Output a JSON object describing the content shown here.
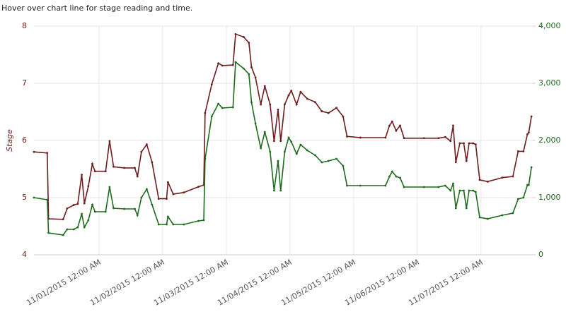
{
  "chart_data": {
    "type": "line",
    "title": "Hover over chart line for stage reading and time.",
    "y_label": "Stage",
    "x": [
      "2015-10-30T23:30",
      "2015-10-31T04:30",
      "2015-10-31T05:00",
      "2015-10-31T10:30",
      "2015-10-31T12:00",
      "2015-10-31T14:30",
      "2015-10-31T16:00",
      "2015-10-31T17:30",
      "2015-10-31T18:30",
      "2015-10-31T20:00",
      "2015-10-31T21:30",
      "2015-10-31T22:30",
      "2015-11-01T02:30",
      "2015-11-01T04:00",
      "2015-11-01T05:30",
      "2015-11-01T09:30",
      "2015-11-01T13:30",
      "2015-11-01T14:30",
      "2015-11-01T16:00",
      "2015-11-01T18:00",
      "2015-11-01T20:00",
      "2015-11-01T22:30",
      "2015-11-02T01:30",
      "2015-11-02T02:00",
      "2015-11-02T04:00",
      "2015-11-02T08:00",
      "2015-11-02T13:30",
      "2015-11-02T15:30",
      "2015-11-02T16:00",
      "2015-11-02T18:30",
      "2015-11-02T21:00",
      "2015-11-02T22:30",
      "2015-11-03T02:30",
      "2015-11-03T03:30",
      "2015-11-03T06:30",
      "2015-11-03T08:30",
      "2015-11-03T09:30",
      "2015-11-03T11:00",
      "2015-11-03T13:00",
      "2015-11-03T14:30",
      "2015-11-03T16:30",
      "2015-11-03T18:00",
      "2015-11-03T19:30",
      "2015-11-03T20:30",
      "2015-11-03T22:00",
      "2015-11-03T23:30",
      "2015-11-04T00:30",
      "2015-11-04T02:30",
      "2015-11-04T04:00",
      "2015-11-04T06:30",
      "2015-11-04T09:30",
      "2015-11-04T12:00",
      "2015-11-04T14:30",
      "2015-11-04T17:30",
      "2015-11-04T20:00",
      "2015-11-04T21:30",
      "2015-11-05T02:30",
      "2015-11-05T12:00",
      "2015-11-05T13:30",
      "2015-11-05T14:30",
      "2015-11-05T16:00",
      "2015-11-05T17:30",
      "2015-11-05T19:00",
      "2015-11-06T02:30",
      "2015-11-06T08:00",
      "2015-11-06T10:30",
      "2015-11-06T12:30",
      "2015-11-06T13:30",
      "2015-11-06T14:30",
      "2015-11-06T16:00",
      "2015-11-06T17:30",
      "2015-11-06T18:30",
      "2015-11-06T19:30",
      "2015-11-06T21:00",
      "2015-11-06T22:00",
      "2015-11-06T23:30",
      "2015-11-07T02:30",
      "2015-11-07T08:00",
      "2015-11-07T12:00",
      "2015-11-07T14:00",
      "2015-11-07T16:00",
      "2015-11-07T17:30",
      "2015-11-07T18:00",
      "2015-11-07T19:00"
    ],
    "series": [
      {
        "color": "#6e1c1c",
        "values": [
          5.8,
          5.78,
          4.63,
          4.62,
          4.81,
          4.87,
          4.89,
          5.4,
          4.9,
          5.2,
          5.59,
          5.46,
          5.46,
          5.99,
          5.54,
          5.52,
          5.52,
          5.37,
          5.8,
          5.93,
          5.62,
          4.98,
          4.98,
          5.27,
          5.06,
          5.09,
          5.19,
          5.22,
          6.48,
          6.98,
          7.35,
          7.31,
          7.32,
          7.86,
          7.81,
          7.71,
          7.28,
          7.1,
          6.63,
          6.95,
          6.63,
          5.99,
          6.54,
          5.99,
          6.63,
          6.79,
          6.87,
          6.63,
          6.85,
          6.73,
          6.67,
          6.51,
          6.48,
          6.57,
          6.42,
          6.07,
          6.05,
          6.05,
          6.26,
          6.33,
          6.17,
          6.26,
          6.04,
          6.04,
          6.04,
          6.06,
          5.99,
          6.26,
          5.62,
          5.95,
          5.95,
          5.64,
          5.95,
          5.95,
          5.93,
          5.31,
          5.28,
          5.35,
          5.37,
          5.81,
          5.81,
          6.11,
          6.14,
          6.42
        ]
      },
      {
        "color": "#1e6b1e",
        "axis": "y2",
        "values": [
          1000,
          963,
          383,
          346,
          444,
          444,
          481,
          716,
          481,
          605,
          877,
          753,
          753,
          1185,
          815,
          802,
          802,
          691,
          1000,
          1148,
          877,
          531,
          531,
          667,
          531,
          531,
          593,
          605,
          1679,
          2420,
          2642,
          2568,
          2580,
          3370,
          3259,
          3160,
          2667,
          2296,
          1864,
          2148,
          1802,
          1123,
          1642,
          1123,
          1802,
          2049,
          1975,
          1765,
          1926,
          1827,
          1741,
          1617,
          1642,
          1679,
          1556,
          1210,
          1210,
          1210,
          1370,
          1457,
          1370,
          1346,
          1185,
          1185,
          1185,
          1210,
          1123,
          1247,
          815,
          1123,
          1123,
          815,
          1123,
          1123,
          1099,
          654,
          630,
          691,
          728,
          975,
          1000,
          1222,
          1222,
          1531
        ]
      }
    ],
    "xlim": [
      "2015-10-30T23:30",
      "2015-11-07T19:30"
    ],
    "xticks": [
      {
        "value": "2015-11-01T00:00",
        "label": "11/01/2015 12:00 AM"
      },
      {
        "value": "2015-11-02T00:00",
        "label": "11/02/2015 12:00 AM"
      },
      {
        "value": "2015-11-03T00:00",
        "label": "11/03/2015 12:00 AM"
      },
      {
        "value": "2015-11-04T00:00",
        "label": "11/04/2015 12:00 AM"
      },
      {
        "value": "2015-11-05T00:00",
        "label": "11/05/2015 12:00 AM"
      },
      {
        "value": "2015-11-06T00:00",
        "label": "11/06/2015 12:00 AM"
      },
      {
        "value": "2015-11-07T00:00",
        "label": "11/07/2015 12:00 AM"
      }
    ],
    "ylim": [
      4,
      8
    ],
    "yticks": [
      4,
      5,
      6,
      7,
      8
    ],
    "y2lim": [
      0,
      4000
    ],
    "y2ticks": [
      0,
      {
        "value": 1000,
        "label": "1,000"
      },
      {
        "value": 2000,
        "label": "2,000"
      },
      {
        "value": 3000,
        "label": "3,000"
      },
      {
        "value": 4000,
        "label": "4,000"
      }
    ],
    "grid": true
  }
}
